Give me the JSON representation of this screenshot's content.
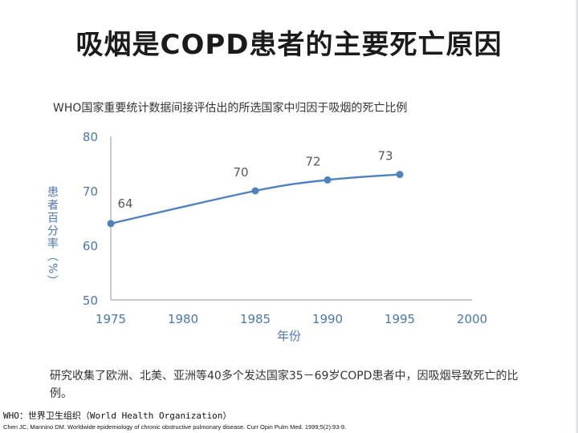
{
  "slide": {
    "title": "吸烟是COPD患者的主要死亡原因",
    "note": "研究收集了欧洲、北美、亚洲等40多个发达国家35－69岁COPD患者中，因吸烟导致死亡的比例。",
    "who_note": "WHO：世界卫生组织（World Health Organization）",
    "citation": "Chen JC, Mannino DM. Worldwide epidemiology of chronic obstructive pulmonary disease. Curr Opin Pulm Med. 1999;5(2):93-9."
  },
  "chart_data": {
    "type": "line",
    "title": "WHO国家重要统计数据间接评估出的所选国家中归因于吸烟的死亡比例",
    "xlabel": "年份",
    "ylabel": "患者百分率（%）",
    "x": [
      1975,
      1985,
      1990,
      1995
    ],
    "values": [
      64,
      70,
      72,
      73
    ],
    "data_labels": [
      "64",
      "70",
      "72",
      "73"
    ],
    "xlim": [
      1975,
      2000
    ],
    "ylim": [
      50,
      80
    ],
    "xticks": [
      1975,
      1980,
      1985,
      1990,
      1995,
      2000
    ],
    "yticks": [
      50,
      60,
      70,
      80
    ],
    "grid": false,
    "colors": {
      "line": "#4f81bd",
      "axis": "#a6a6a6",
      "tick_text": "#4a78b5",
      "label_text": "#4a78b5"
    }
  }
}
